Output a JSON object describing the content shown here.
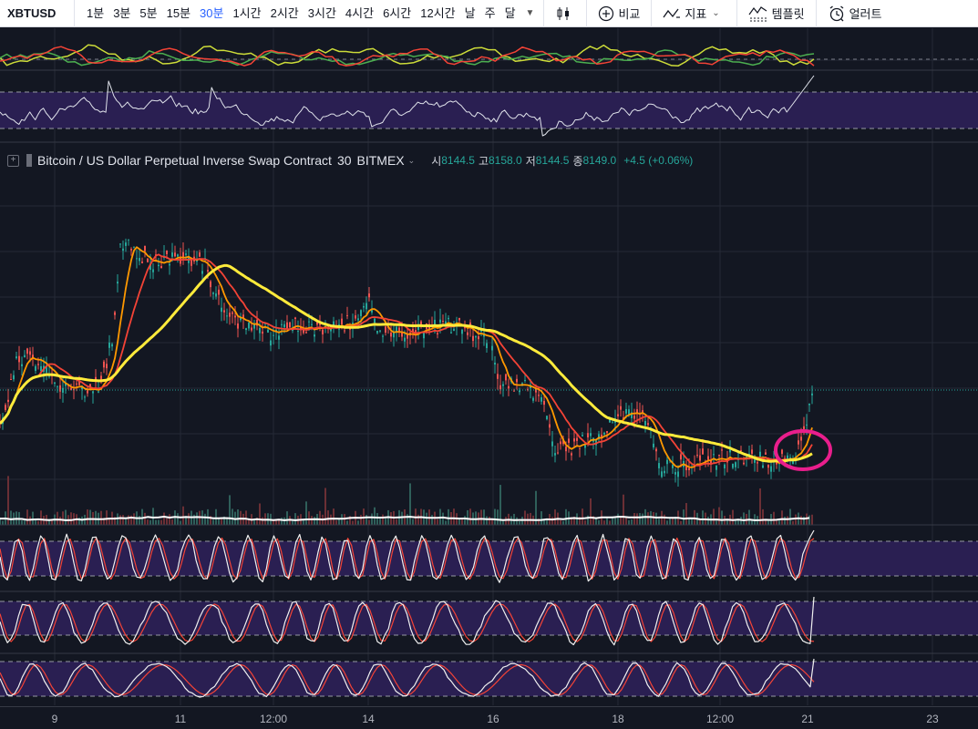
{
  "toolbar": {
    "symbol": "XBTUSD",
    "intervals": [
      "1분",
      "3분",
      "5분",
      "15분",
      "30분",
      "1시간",
      "2시간",
      "3시간",
      "4시간",
      "6시간",
      "12시간",
      "날",
      "주",
      "달"
    ],
    "active_interval": "30분",
    "compare_label": "비교",
    "indicators_label": "지표",
    "templates_label": "템플릿",
    "alert_label": "얼러트"
  },
  "legend": {
    "title": "Bitcoin / US Dollar Perpetual Inverse Swap Contract",
    "interval": "30",
    "exchange": "BITMEX",
    "open_label": "시",
    "open": "8144.5",
    "high_label": "고",
    "high": "8158.0",
    "low_label": "저",
    "low": "8144.5",
    "close_label": "종",
    "close": "8149.0",
    "change": "+4.5 (+0.06%)"
  },
  "time_axis": [
    "9",
    "11",
    "12:00",
    "14",
    "16",
    "18",
    "12:00",
    "21",
    "23"
  ],
  "colors": {
    "background": "#131722",
    "up": "#26a69a",
    "down": "#ef5350",
    "ma_yellow": "#ffeb3b",
    "ma_orange": "#ff9800",
    "ma_red": "#f44336",
    "rsi_band": "#2a1f52",
    "highlight_circle": "#e91e8c"
  }
}
